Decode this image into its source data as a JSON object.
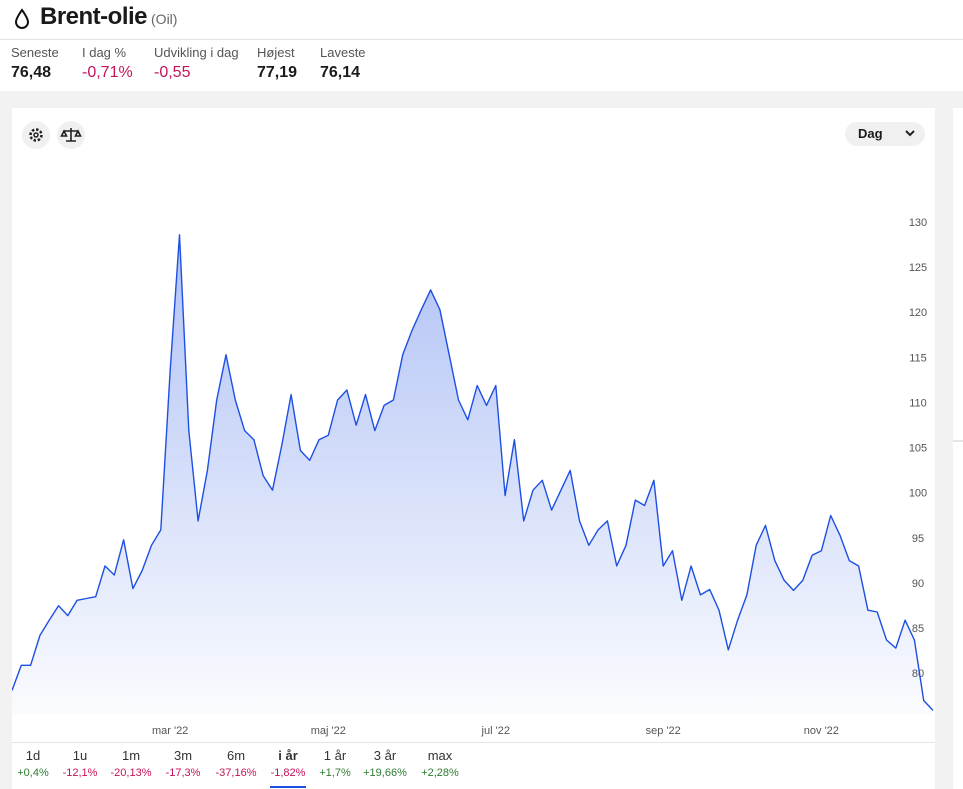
{
  "header": {
    "title": "Brent-olie",
    "subtitle": "(Oil)"
  },
  "stats": [
    {
      "label": "Seneste",
      "value": "76,48"
    },
    {
      "label": "I dag %",
      "value": "-0,71%",
      "trend": "down"
    },
    {
      "label": "Udvikling i dag",
      "value": "-0,55",
      "trend": "down"
    },
    {
      "label": "Højest",
      "value": "77,19"
    },
    {
      "label": "Laveste",
      "value": "76,14"
    }
  ],
  "chart_data": {
    "type": "line",
    "interval": "Dag",
    "area": true,
    "categories": [
      null,
      null,
      null,
      null,
      null,
      null,
      null,
      null,
      null,
      null,
      null,
      null,
      null,
      null,
      null,
      null,
      null,
      "mar '22",
      null,
      null,
      null,
      null,
      null,
      null,
      null,
      null,
      null,
      null,
      null,
      null,
      null,
      null,
      null,
      null,
      "maj '22",
      null,
      null,
      null,
      null,
      null,
      null,
      null,
      null,
      null,
      null,
      null,
      null,
      null,
      null,
      null,
      null,
      null,
      "jul '22",
      null,
      null,
      null,
      null,
      null,
      null,
      null,
      null,
      null,
      null,
      null,
      null,
      null,
      null,
      null,
      null,
      null,
      "sep '22",
      null,
      null,
      null,
      null,
      null,
      null,
      null,
      null,
      null,
      null,
      null,
      null,
      null,
      null,
      null,
      null,
      "nov '22",
      null,
      null,
      null,
      null,
      null,
      null,
      null,
      null,
      null,
      null,
      null,
      null
    ],
    "series": [
      {
        "color": "#1d4fe3",
        "values": [
          78.2,
          81,
          81,
          84.3,
          86,
          87.6,
          86.5,
          88.2,
          88.4,
          88.6,
          92,
          91,
          94.9,
          89.5,
          91.5,
          94.3,
          96,
          113.7,
          128.7,
          107,
          97,
          102.6,
          110.4,
          115.4,
          110.4,
          107,
          106,
          102,
          100.4,
          105.4,
          111,
          104.8,
          103.7,
          106,
          106.5,
          110.4,
          111.5,
          107.6,
          111,
          107,
          109.8,
          110.4,
          115.4,
          118.1,
          120.4,
          122.6,
          120.4,
          115.4,
          110.4,
          108.2,
          112,
          109.8,
          112,
          99.8,
          106,
          97,
          100.4,
          101.5,
          98.2,
          100.4,
          102.6,
          97,
          94.3,
          96,
          97,
          92,
          94.3,
          99.3,
          98.7,
          101.5,
          92,
          93.7,
          88.2,
          92,
          88.8,
          89.4,
          87.1,
          82.7,
          86,
          88.8,
          94.3,
          96.5,
          92.6,
          90.4,
          89.3,
          90.4,
          93.2,
          93.7,
          97.6,
          95.4,
          92.6,
          92,
          87.1,
          86.9,
          83.8,
          82.9,
          86,
          83.8,
          77.1,
          76
        ]
      }
    ],
    "ylim": [
      75.6,
      138.1
    ],
    "yticks": [
      80,
      85,
      90,
      95,
      100,
      105,
      110,
      115,
      120,
      125,
      130
    ]
  },
  "periods": [
    {
      "label": "1d",
      "change": "+0,4%",
      "trend": "up"
    },
    {
      "label": "1u",
      "change": "-12,1%",
      "trend": "down"
    },
    {
      "label": "1m",
      "change": "-20,13%",
      "trend": "down"
    },
    {
      "label": "3m",
      "change": "-17,3%",
      "trend": "down"
    },
    {
      "label": "6m",
      "change": "-37,16%",
      "trend": "down"
    },
    {
      "label": "i år",
      "change": "-1,82%",
      "trend": "down",
      "selected": true
    },
    {
      "label": "1 år",
      "change": "+1,7%",
      "trend": "up"
    },
    {
      "label": "3 år",
      "change": "+19,66%",
      "trend": "up"
    },
    {
      "label": "max",
      "change": "+2,28%",
      "trend": "up"
    }
  ]
}
